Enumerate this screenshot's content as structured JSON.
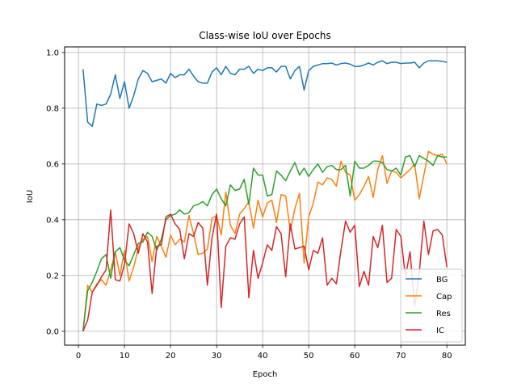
{
  "chart_data": {
    "type": "line",
    "title": "Class-wise IoU over Epochs",
    "xlabel": "Epoch",
    "ylabel": "IoU",
    "xlim": [
      -3,
      84
    ],
    "ylim": [
      -0.05,
      1.02
    ],
    "xticks": [
      0,
      10,
      20,
      30,
      40,
      50,
      60,
      70,
      80
    ],
    "yticks": [
      0.0,
      0.2,
      0.4,
      0.6,
      0.8,
      1.0
    ],
    "xtick_labels": [
      "0",
      "10",
      "20",
      "30",
      "40",
      "50",
      "60",
      "70",
      "80"
    ],
    "ytick_labels": [
      "0.0",
      "0.2",
      "0.4",
      "0.6",
      "0.8",
      "1.0"
    ],
    "grid": true,
    "legend_position": "lower-right",
    "x": [
      1,
      2,
      3,
      4,
      5,
      6,
      7,
      8,
      9,
      10,
      11,
      12,
      13,
      14,
      15,
      16,
      17,
      18,
      19,
      20,
      21,
      22,
      23,
      24,
      25,
      26,
      27,
      28,
      29,
      30,
      31,
      32,
      33,
      34,
      35,
      36,
      37,
      38,
      39,
      40,
      41,
      42,
      43,
      44,
      45,
      46,
      47,
      48,
      49,
      50,
      51,
      52,
      53,
      54,
      55,
      56,
      57,
      58,
      59,
      60,
      61,
      62,
      63,
      64,
      65,
      66,
      67,
      68,
      69,
      70,
      71,
      72,
      73,
      74,
      75,
      76,
      77,
      78,
      79,
      80
    ],
    "series": [
      {
        "name": "BG",
        "color": "#1f77b4",
        "values": [
          0.94,
          0.75,
          0.735,
          0.815,
          0.81,
          0.815,
          0.85,
          0.92,
          0.835,
          0.895,
          0.8,
          0.845,
          0.905,
          0.935,
          0.925,
          0.895,
          0.9,
          0.905,
          0.89,
          0.925,
          0.91,
          0.92,
          0.92,
          0.94,
          0.915,
          0.895,
          0.89,
          0.89,
          0.93,
          0.945,
          0.92,
          0.95,
          0.925,
          0.92,
          0.94,
          0.94,
          0.95,
          0.925,
          0.94,
          0.935,
          0.945,
          0.945,
          0.93,
          0.95,
          0.95,
          0.905,
          0.935,
          0.95,
          0.865,
          0.935,
          0.95,
          0.955,
          0.96,
          0.96,
          0.962,
          0.955,
          0.96,
          0.962,
          0.958,
          0.95,
          0.95,
          0.955,
          0.962,
          0.955,
          0.965,
          0.97,
          0.96,
          0.965,
          0.965,
          0.96,
          0.962,
          0.962,
          0.965,
          0.945,
          0.962,
          0.97,
          0.97,
          0.97,
          0.968,
          0.965
        ]
      },
      {
        "name": "Cap",
        "color": "#ff7f0e",
        "values": [
          0.0,
          0.165,
          0.14,
          0.17,
          0.185,
          0.165,
          0.22,
          0.285,
          0.2,
          0.29,
          0.18,
          0.23,
          0.3,
          0.33,
          0.34,
          0.25,
          0.34,
          0.305,
          0.265,
          0.345,
          0.31,
          0.33,
          0.32,
          0.415,
          0.35,
          0.275,
          0.28,
          0.295,
          0.405,
          0.415,
          0.345,
          0.5,
          0.38,
          0.35,
          0.42,
          0.44,
          0.465,
          0.37,
          0.47,
          0.41,
          0.46,
          0.47,
          0.39,
          0.49,
          0.485,
          0.36,
          0.44,
          0.495,
          0.245,
          0.41,
          0.46,
          0.535,
          0.525,
          0.55,
          0.545,
          0.52,
          0.61,
          0.57,
          0.56,
          0.47,
          0.49,
          0.52,
          0.555,
          0.48,
          0.58,
          0.63,
          0.53,
          0.575,
          0.57,
          0.55,
          0.565,
          0.58,
          0.6,
          0.475,
          0.56,
          0.645,
          0.635,
          0.63,
          0.635,
          0.6
        ]
      },
      {
        "name": "Res",
        "color": "#2ca02c",
        "values": [
          0.0,
          0.145,
          0.175,
          0.215,
          0.26,
          0.275,
          0.19,
          0.285,
          0.3,
          0.255,
          0.235,
          0.275,
          0.315,
          0.32,
          0.355,
          0.34,
          0.29,
          0.33,
          0.4,
          0.415,
          0.42,
          0.435,
          0.42,
          0.425,
          0.45,
          0.455,
          0.465,
          0.45,
          0.49,
          0.51,
          0.475,
          0.45,
          0.525,
          0.505,
          0.51,
          0.545,
          0.455,
          0.585,
          0.56,
          0.56,
          0.485,
          0.49,
          0.575,
          0.56,
          0.54,
          0.575,
          0.605,
          0.56,
          0.585,
          0.555,
          0.58,
          0.6,
          0.57,
          0.59,
          0.595,
          0.58,
          0.58,
          0.595,
          0.485,
          0.61,
          0.585,
          0.585,
          0.595,
          0.61,
          0.61,
          0.605,
          0.58,
          0.575,
          0.585,
          0.56,
          0.625,
          0.63,
          0.59,
          0.63,
          0.62,
          0.61,
          0.595,
          0.63,
          0.625,
          0.625
        ]
      },
      {
        "name": "IC",
        "color": "#d62728",
        "values": [
          0.0,
          0.04,
          0.14,
          0.165,
          0.195,
          0.22,
          0.435,
          0.185,
          0.18,
          0.24,
          0.385,
          0.35,
          0.28,
          0.35,
          0.32,
          0.135,
          0.305,
          0.31,
          0.41,
          0.42,
          0.385,
          0.365,
          0.26,
          0.35,
          0.34,
          0.39,
          0.37,
          0.165,
          0.335,
          0.42,
          0.085,
          0.305,
          0.335,
          0.33,
          0.385,
          0.41,
          0.12,
          0.29,
          0.19,
          0.245,
          0.31,
          0.29,
          0.375,
          0.35,
          0.195,
          0.385,
          0.295,
          0.3,
          0.305,
          0.22,
          0.29,
          0.28,
          0.335,
          0.165,
          0.19,
          0.17,
          0.29,
          0.395,
          0.355,
          0.38,
          0.16,
          0.215,
          0.165,
          0.34,
          0.3,
          0.38,
          0.175,
          0.19,
          0.365,
          0.34,
          0.195,
          0.285,
          0.09,
          0.21,
          0.395,
          0.275,
          0.36,
          0.365,
          0.345,
          0.23
        ]
      }
    ]
  }
}
